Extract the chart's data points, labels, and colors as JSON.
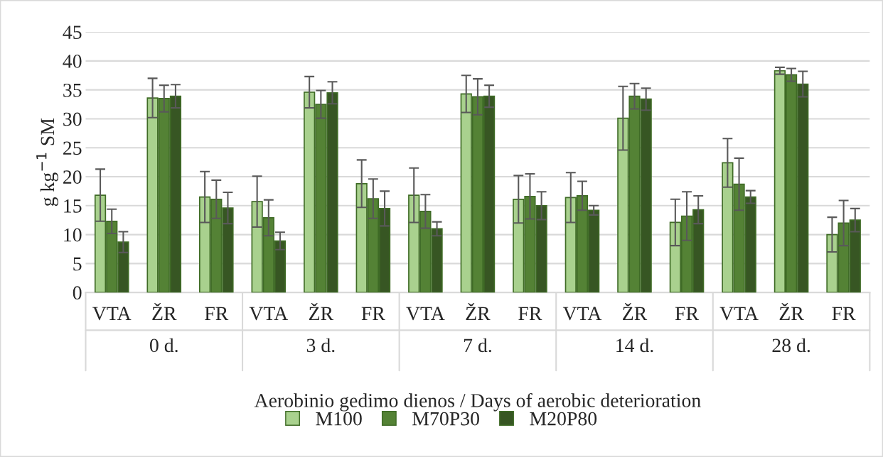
{
  "chart_data": {
    "type": "bar",
    "ylabel": "g kg$^{−1}$ SM",
    "xlabel": "Aerobinio gedimo dienos / Days of aerobic deterioration",
    "categories": [
      "VTA",
      "ŽR",
      "FR",
      "VTA",
      "ŽR",
      "FR",
      "VTA",
      "ŽR",
      "FR",
      "VTA",
      "ŽR",
      "FR",
      "VTA",
      "ŽR",
      "FR"
    ],
    "annotations": [
      "0 d.",
      "3 d.",
      "7 d.",
      "14 d.",
      "28 d."
    ],
    "series": [
      {
        "name": "M100",
        "color": "#a9d18e",
        "values": [
          16.8,
          33.6,
          16.5,
          15.7,
          34.6,
          18.8,
          16.8,
          34.3,
          16.1,
          16.4,
          30.1,
          12.1,
          22.4,
          38.3,
          10.0
        ],
        "errors": [
          4.5,
          3.4,
          4.4,
          4.4,
          2.7,
          4.1,
          4.7,
          3.2,
          4.1,
          4.3,
          5.5,
          4.0,
          4.2,
          0.6,
          3.0
        ]
      },
      {
        "name": "M70P30",
        "color": "#548235",
        "values": [
          12.3,
          33.5,
          16.1,
          12.9,
          32.5,
          16.2,
          14.0,
          33.8,
          16.6,
          16.7,
          33.9,
          13.2,
          18.7,
          37.6,
          12.0
        ],
        "errors": [
          2.1,
          2.3,
          3.3,
          3.1,
          2.4,
          3.4,
          2.9,
          3.1,
          3.9,
          2.5,
          2.2,
          4.2,
          4.5,
          1.1,
          3.9
        ]
      },
      {
        "name": "M20P80",
        "color": "#375623",
        "values": [
          8.7,
          33.9,
          14.6,
          8.9,
          34.5,
          14.5,
          11.0,
          33.9,
          15.0,
          14.2,
          33.4,
          14.3,
          16.5,
          36.0,
          12.5
        ],
        "errors": [
          1.8,
          2.0,
          2.7,
          1.5,
          1.9,
          3.0,
          1.2,
          1.9,
          2.4,
          0.8,
          1.9,
          2.4,
          1.1,
          2.2,
          2.0
        ]
      }
    ],
    "ylim": [
      0,
      45
    ],
    "yticks": [
      0,
      5,
      10,
      15,
      20,
      25,
      30,
      35,
      40,
      45
    ],
    "grid": "y",
    "legend": "bottom"
  }
}
